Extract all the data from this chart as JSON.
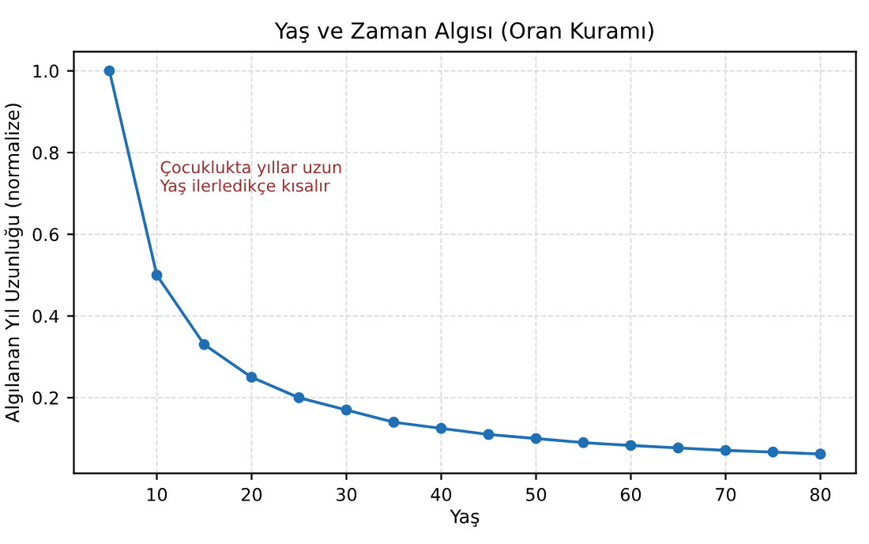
{
  "chart_data": {
    "type": "line",
    "title": "Yaş ve Zaman Algısı (Oran Kuramı)",
    "xlabel": "Yaş",
    "ylabel": "Algılanan Yıl Uzunluğu (normalize)",
    "x": [
      5,
      10,
      15,
      20,
      25,
      30,
      35,
      40,
      45,
      50,
      55,
      60,
      65,
      70,
      75,
      80
    ],
    "series": [
      {
        "color": "#1f6fb4",
        "values": [
          1.0,
          0.5,
          0.33,
          0.25,
          0.2,
          0.17,
          0.14,
          0.125,
          0.11,
          0.1,
          0.09,
          0.083,
          0.077,
          0.071,
          0.067,
          0.062
        ]
      }
    ],
    "annotations": [
      "Çocuklukta yıllar uzun\nYaş ilerledikçe kısalır"
    ],
    "xlim": [
      1.25,
      83.75
    ],
    "ylim": [
      0.015,
      1.047
    ],
    "xticks": [
      10,
      20,
      30,
      40,
      50,
      60,
      70,
      80
    ],
    "yticks": [
      0.2,
      0.4,
      0.6,
      0.8,
      {
        "value": 1,
        "label": "1.0"
      }
    ],
    "grid": true,
    "marker": "circle",
    "line_style": "solid"
  }
}
